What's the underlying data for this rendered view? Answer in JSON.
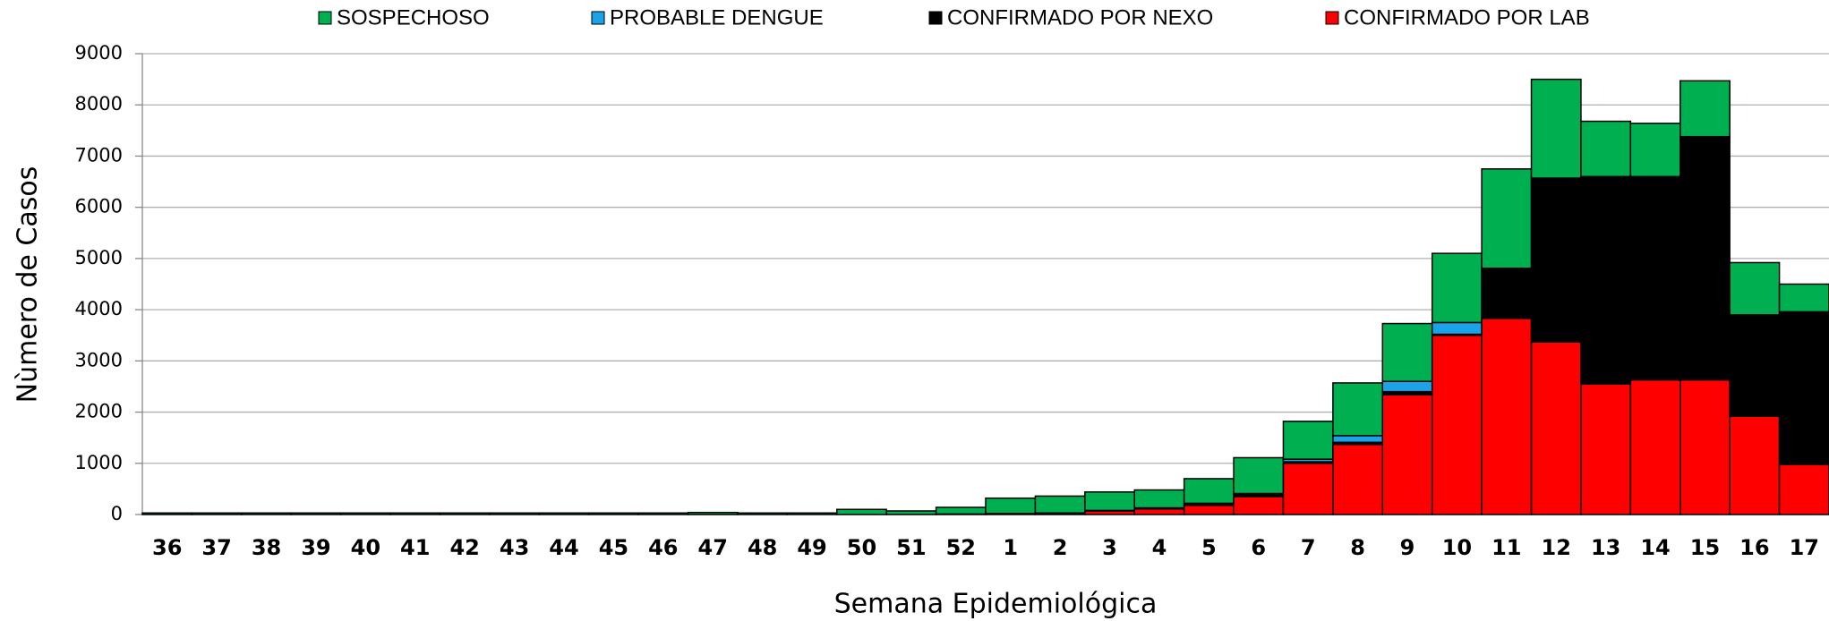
{
  "chart_data": {
    "type": "stacked_bar",
    "xlabel": "Semana Epidemiológica",
    "ylabel": "Nùmero de Casos",
    "categories": [
      "36",
      "37",
      "38",
      "39",
      "40",
      "41",
      "42",
      "43",
      "44",
      "45",
      "46",
      "47",
      "48",
      "49",
      "50",
      "51",
      "52",
      "1",
      "2",
      "3",
      "4",
      "5",
      "6",
      "7",
      "8",
      "9",
      "10",
      "11",
      "12",
      "13",
      "14",
      "15",
      "16",
      "17"
    ],
    "series": [
      {
        "name": "SOSPECHOSO",
        "color": "#00b050",
        "values": [
          30,
          30,
          30,
          30,
          30,
          30,
          30,
          30,
          30,
          30,
          30,
          40,
          30,
          30,
          100,
          70,
          130,
          300,
          330,
          360,
          350,
          480,
          700,
          740,
          1030,
          1130,
          1350,
          1940,
          1930,
          1080,
          1040,
          1090,
          1020,
          540
        ]
      },
      {
        "name": "PROBABLE DENGUE",
        "color": "#1aa3e8",
        "values": [
          0,
          0,
          0,
          0,
          0,
          0,
          0,
          0,
          0,
          0,
          0,
          0,
          0,
          0,
          0,
          0,
          0,
          0,
          0,
          0,
          0,
          0,
          10,
          50,
          130,
          200,
          230,
          0,
          0,
          0,
          0,
          0,
          0,
          0
        ]
      },
      {
        "name": "CONFIRMADO POR NEXO",
        "color": "#000000",
        "values": [
          0,
          0,
          0,
          0,
          0,
          0,
          0,
          0,
          0,
          0,
          0,
          0,
          0,
          0,
          0,
          0,
          0,
          0,
          10,
          10,
          20,
          40,
          50,
          30,
          40,
          60,
          20,
          980,
          3200,
          4050,
          3970,
          4750,
          1980,
          2980
        ]
      },
      {
        "name": "CONFIRMADO POR LAB",
        "color": "#ff0000",
        "values": [
          0,
          0,
          0,
          0,
          0,
          0,
          0,
          0,
          0,
          0,
          0,
          0,
          0,
          0,
          0,
          0,
          10,
          20,
          20,
          70,
          110,
          180,
          350,
          1000,
          1370,
          2340,
          3500,
          3830,
          3370,
          2550,
          2630,
          2630,
          1920,
          980
        ]
      }
    ],
    "ylim": [
      0,
      9000
    ],
    "yticks": [
      0,
      1000,
      2000,
      3000,
      4000,
      5000,
      6000,
      7000,
      8000,
      9000
    ],
    "grid": true,
    "legend": "top"
  }
}
